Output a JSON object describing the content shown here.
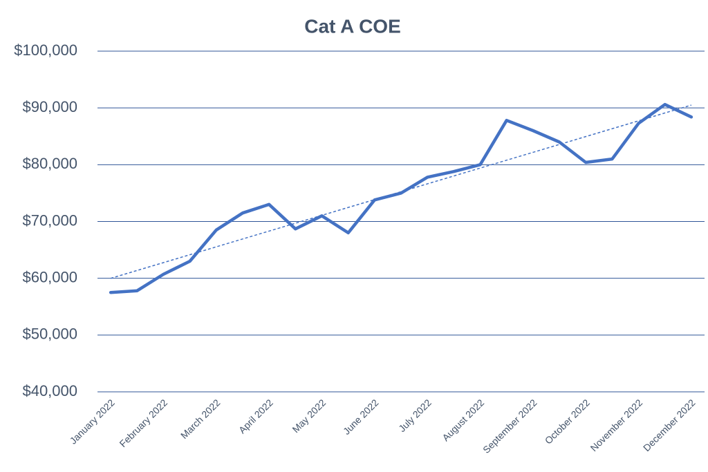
{
  "chart_data": {
    "type": "line",
    "title": "Cat A COE",
    "categories": [
      "January 2022",
      null,
      "February 2022",
      null,
      "March 2022",
      null,
      "April 2022",
      null,
      "May 2022",
      null,
      "June 2022",
      null,
      "July 2022",
      null,
      "August 2022",
      null,
      "September 2022",
      null,
      "October 2022",
      null,
      "November 2022",
      null,
      "December 2022"
    ],
    "series": [
      {
        "name": "Cat A COE",
        "color": "#4472c4",
        "values": [
          57500,
          57800,
          60700,
          63000,
          68500,
          71500,
          73000,
          68700,
          71000,
          68000,
          73800,
          75000,
          77800,
          78800,
          80000,
          87800,
          86000,
          84000,
          80400,
          81000,
          87300,
          90600,
          88400
        ]
      }
    ],
    "trendline": "linear",
    "ylim": [
      40000,
      100000
    ],
    "yticks": [
      {
        "value": 40000,
        "label": "$40,000"
      },
      {
        "value": 50000,
        "label": "$50,000"
      },
      {
        "value": 60000,
        "label": "$60,000"
      },
      {
        "value": 70000,
        "label": "$70,000"
      },
      {
        "value": 80000,
        "label": "$80,000"
      },
      {
        "value": 90000,
        "label": "$90,000"
      },
      {
        "value": 100000,
        "label": "$100,000"
      }
    ],
    "grid": true,
    "grid_color": "#2f5597"
  }
}
